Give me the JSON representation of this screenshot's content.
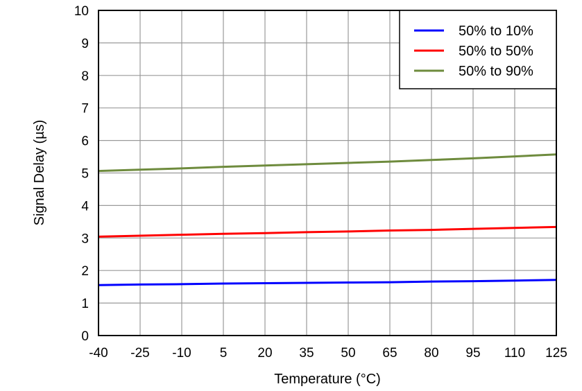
{
  "chart_data": {
    "type": "line",
    "title": "",
    "xlabel": "Temperature (°C)",
    "ylabel": "Signal Delay (µs)",
    "xlim": [
      -40,
      125
    ],
    "ylim": [
      0,
      10
    ],
    "xticks": [
      -40,
      -25,
      -10,
      5,
      20,
      35,
      50,
      65,
      80,
      95,
      110,
      125
    ],
    "yticks": [
      0,
      1,
      2,
      3,
      4,
      5,
      6,
      7,
      8,
      9,
      10
    ],
    "grid": true,
    "legend_position": "top-right",
    "x": [
      -40,
      -25,
      -10,
      5,
      20,
      35,
      50,
      65,
      80,
      95,
      110,
      125
    ],
    "series": [
      {
        "name": "50% to 10%",
        "color": "#0000FF",
        "values": [
          1.55,
          1.57,
          1.58,
          1.6,
          1.61,
          1.62,
          1.63,
          1.64,
          1.66,
          1.67,
          1.69,
          1.71
        ]
      },
      {
        "name": "50% to 50%",
        "color": "#FF0000",
        "values": [
          3.04,
          3.07,
          3.1,
          3.13,
          3.15,
          3.18,
          3.2,
          3.23,
          3.25,
          3.28,
          3.31,
          3.34
        ]
      },
      {
        "name": "50% to 90%",
        "color": "#6E8B3D",
        "values": [
          5.06,
          5.1,
          5.14,
          5.19,
          5.23,
          5.27,
          5.31,
          5.35,
          5.4,
          5.45,
          5.51,
          5.57
        ]
      }
    ]
  }
}
